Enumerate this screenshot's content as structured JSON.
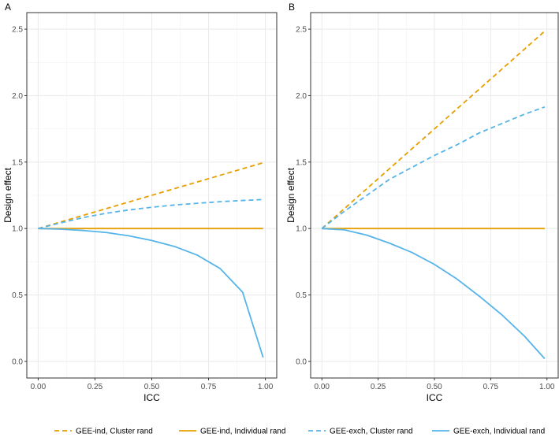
{
  "chart_data": [
    {
      "panel": "A",
      "type": "line",
      "xlabel": "ICC",
      "ylabel": "Design effect",
      "xlim": [
        0,
        1
      ],
      "ylim": [
        0,
        2.5
      ],
      "x_ticks": [
        "0.00",
        "0.25",
        "0.50",
        "0.75",
        "1.00"
      ],
      "y_ticks": [
        "0.0",
        "0.5",
        "1.0",
        "1.5",
        "2.0",
        "2.5"
      ],
      "x": [
        0,
        0.1,
        0.2,
        0.3,
        0.4,
        0.5,
        0.6,
        0.7,
        0.8,
        0.9,
        0.99
      ],
      "series": [
        {
          "name": "GEE-ind, Cluster rand",
          "color": "#E69F00",
          "dash": "dashed",
          "values": [
            1.0,
            1.05,
            1.1,
            1.15,
            1.2,
            1.25,
            1.3,
            1.35,
            1.4,
            1.45,
            1.495
          ]
        },
        {
          "name": "GEE-ind, Individual rand",
          "color": "#E69F00",
          "dash": "solid",
          "values": [
            1,
            1,
            1,
            1,
            1,
            1,
            1,
            1,
            1,
            1,
            1
          ]
        },
        {
          "name": "GEE-exch, Cluster rand",
          "color": "#56B4E9",
          "dash": "dashed",
          "values": [
            1.0,
            1.043,
            1.083,
            1.115,
            1.14,
            1.16,
            1.177,
            1.19,
            1.202,
            1.211,
            1.218
          ]
        },
        {
          "name": "GEE-exch, Individual rand",
          "color": "#56B4E9",
          "dash": "solid",
          "values": [
            1.0,
            0.995,
            0.985,
            0.97,
            0.945,
            0.91,
            0.865,
            0.8,
            0.7,
            0.52,
            0.03
          ]
        }
      ]
    },
    {
      "panel": "B",
      "type": "line",
      "xlabel": "ICC",
      "ylabel": "Design effect",
      "xlim": [
        0,
        1
      ],
      "ylim": [
        0,
        2.5
      ],
      "x_ticks": [
        "0.00",
        "0.25",
        "0.50",
        "0.75",
        "1.00"
      ],
      "y_ticks": [
        "0.0",
        "0.5",
        "1.0",
        "1.5",
        "2.0",
        "2.5"
      ],
      "x": [
        0,
        0.1,
        0.2,
        0.3,
        0.4,
        0.5,
        0.6,
        0.7,
        0.8,
        0.9,
        0.99
      ],
      "series": [
        {
          "name": "GEE-ind, Cluster rand",
          "color": "#E69F00",
          "dash": "dashed",
          "values": [
            1.0,
            1.15,
            1.3,
            1.45,
            1.6,
            1.75,
            1.9,
            2.05,
            2.2,
            2.35,
            2.485
          ]
        },
        {
          "name": "GEE-ind, Individual rand",
          "color": "#E69F00",
          "dash": "solid",
          "values": [
            1,
            1,
            1,
            1,
            1,
            1,
            1,
            1,
            1,
            1,
            1
          ]
        },
        {
          "name": "GEE-exch, Cluster rand",
          "color": "#56B4E9",
          "dash": "dashed",
          "values": [
            1.0,
            1.13,
            1.25,
            1.37,
            1.46,
            1.55,
            1.63,
            1.72,
            1.79,
            1.86,
            1.915
          ]
        },
        {
          "name": "GEE-exch, Individual rand",
          "color": "#56B4E9",
          "dash": "solid",
          "values": [
            1.0,
            0.99,
            0.95,
            0.89,
            0.82,
            0.73,
            0.62,
            0.49,
            0.35,
            0.19,
            0.02
          ]
        }
      ]
    }
  ],
  "legend": [
    {
      "label": "GEE-ind, Cluster rand",
      "color": "#E69F00",
      "dash": "dashed"
    },
    {
      "label": "GEE-ind, Individual rand",
      "color": "#E69F00",
      "dash": "solid"
    },
    {
      "label": "GEE-exch, Cluster rand",
      "color": "#56B4E9",
      "dash": "dashed"
    },
    {
      "label": "GEE-exch, Individual rand",
      "color": "#56B4E9",
      "dash": "solid"
    }
  ]
}
